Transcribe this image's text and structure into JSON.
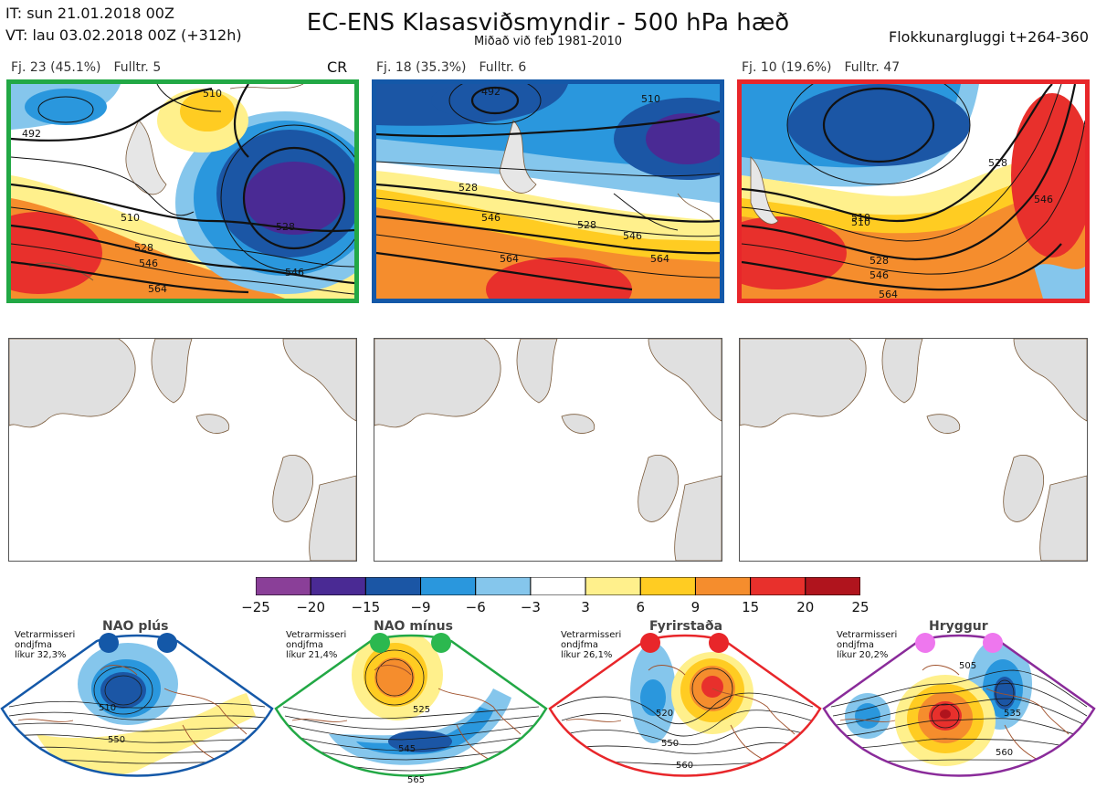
{
  "header": {
    "it_line": "IT: sun 21.01.2018 00Z",
    "vt_line": "VT: lau 03.02.2018 00Z  (+312h)",
    "title": "EC-ENS Klasasviðsmyndir - 500 hPa hæð",
    "subtitle": "Miðað við feb 1981-2010",
    "window": "Flokkunargluggi t+264-360"
  },
  "clusters": [
    {
      "label": "Fj. 23 (45.1%)",
      "fulltr": "Fulltr. 5",
      "tag": "CR",
      "frame_color": "#22a845",
      "contour_labels": [
        "492",
        "510",
        "528",
        "510",
        "528",
        "546",
        "564",
        "546"
      ]
    },
    {
      "label": "Fj. 18 (35.3%)",
      "fulltr": "Fulltr. 6",
      "tag": "",
      "frame_color": "#1458a8",
      "contour_labels": [
        "492",
        "510",
        "528",
        "546",
        "528",
        "546",
        "564",
        "564"
      ]
    },
    {
      "label": "Fj. 10 (19.6%)",
      "fulltr": "Fulltr. 47",
      "tag": "",
      "frame_color": "#e8262a",
      "contour_labels": [
        "510",
        "528",
        "546",
        "510",
        "528",
        "546",
        "564"
      ]
    }
  ],
  "colorbar": {
    "colors": [
      "#8a3f98",
      "#4a2a94",
      "#1b56a5",
      "#2a97dd",
      "#85c6ec",
      "#ffffff",
      "#fff08c",
      "#ffcc22",
      "#f58d2d",
      "#e8302c",
      "#b0141d"
    ],
    "labels": [
      "−25",
      "−20",
      "−15",
      "−9",
      "−6",
      "−3",
      "3",
      "6",
      "9",
      "15",
      "20",
      "25"
    ]
  },
  "regimes": [
    {
      "name": "NAO plús",
      "note": [
        "Vetrarmisseri",
        "ondjfma",
        "líkur 32,3%"
      ],
      "color": "#1458a8",
      "dot_color": "#1458a8",
      "contour_labels": [
        "510",
        "550"
      ]
    },
    {
      "name": "NAO mínus",
      "note": [
        "Vetrarmisseri",
        "ondjfma",
        "líkur 21,4%"
      ],
      "color": "#22a845",
      "dot_color": "#2cb84f",
      "contour_labels": [
        "525",
        "545",
        "565"
      ]
    },
    {
      "name": "Fyrirstaða",
      "note": [
        "Vetrarmisseri",
        "ondjfma",
        "líkur 26,1%"
      ],
      "color": "#e8262a",
      "dot_color": "#e8262a",
      "contour_labels": [
        "520",
        "550",
        "560"
      ]
    },
    {
      "name": "Hryggur",
      "note": [
        "Vetrarmisseri",
        "ondjfma",
        "líkur 20,2%"
      ],
      "color": "#8a2b9a",
      "dot_color": "#ee77ee",
      "contour_labels": [
        "505",
        "535",
        "560"
      ]
    }
  ]
}
